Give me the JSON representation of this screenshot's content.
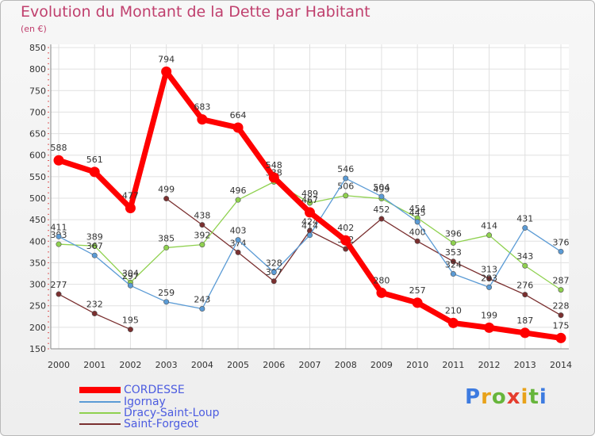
{
  "title": "Evolution du Montant de la Dette par Habitant",
  "unit": "(en €)",
  "logo": {
    "text": "Proxiti",
    "letter_colors": [
      "#3d7be0",
      "#e8a21a",
      "#67b53b",
      "#e53d2e",
      "#e8a21a",
      "#67b53b",
      "#3d7be0"
    ]
  },
  "chart_data": {
    "type": "line",
    "title": "Evolution du Montant de la Dette par Habitant",
    "ylabel": "(en €)",
    "xlabel": "",
    "x": [
      "2000",
      "2001",
      "2002",
      "2003",
      "2004",
      "2005",
      "2006",
      "2007",
      "2008",
      "2009",
      "2010",
      "2011",
      "2012",
      "2013",
      "2014"
    ],
    "ylim": [
      150,
      850
    ],
    "yticks": [
      150,
      200,
      250,
      300,
      350,
      400,
      450,
      500,
      550,
      600,
      650,
      700,
      750,
      800,
      850
    ],
    "grid": true,
    "legend_position": "bottom-left",
    "series": [
      {
        "name": "Saint-Forgeot",
        "color": "#7a2f2f",
        "values": [
          277,
          232,
          195,
          499,
          438,
          374,
          307,
          424,
          382,
          452,
          400,
          353,
          313,
          276,
          228
        ],
        "gaps_after": [
          2
        ]
      },
      {
        "name": "Dracy-Saint-Loup",
        "color": "#8fd14f",
        "values": [
          393,
          389,
          304,
          385,
          392,
          496,
          538,
          489,
          506,
          499,
          454,
          396,
          414,
          343,
          287
        ],
        "gaps_after": []
      },
      {
        "name": "Igornay",
        "color": "#5b9bd5",
        "values": [
          411,
          367,
          297,
          259,
          243,
          403,
          328,
          414,
          546,
          504,
          445,
          324,
          293,
          431,
          376
        ],
        "gaps_after": []
      },
      {
        "name": "CORDESSE",
        "color": "#ff0000",
        "values": [
          588,
          561,
          477,
          794,
          683,
          664,
          548,
          467,
          402,
          280,
          257,
          210,
          199,
          187,
          175
        ],
        "gaps_after": [],
        "emphasized": true
      }
    ],
    "legend": [
      "CORDESSE",
      "Igornay",
      "Dracy-Saint-Loup",
      "Saint-Forgeot"
    ]
  }
}
